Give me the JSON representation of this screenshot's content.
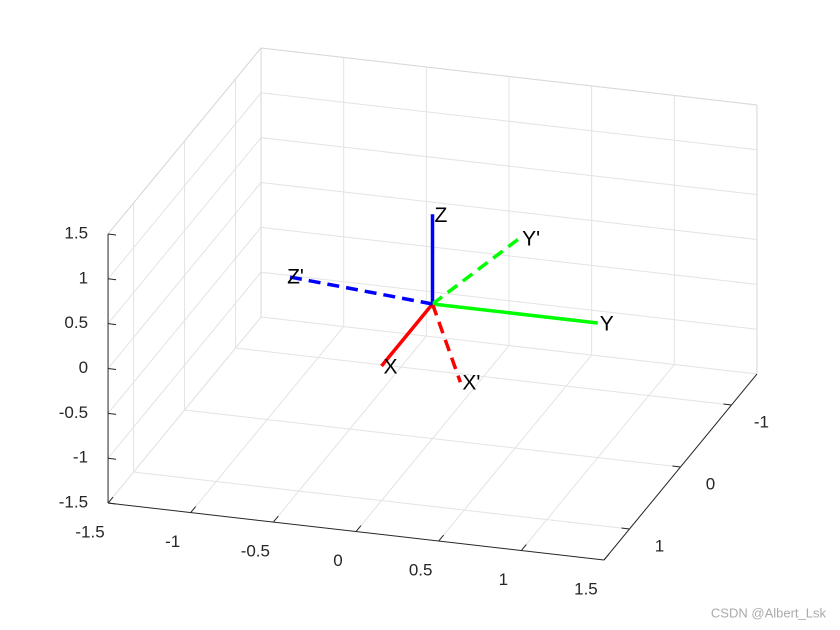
{
  "chart_data": {
    "type": "line3d",
    "xlim": [
      -1.5,
      1.5
    ],
    "ylim": [
      -1.5,
      1.5
    ],
    "zlim": [
      -1.5,
      1.5
    ],
    "xticks": [
      -1,
      0,
      1
    ],
    "yticks": [
      -1.5,
      -1,
      -0.5,
      0,
      0.5,
      1,
      1.5
    ],
    "zticks": [
      -1.5,
      -1,
      -0.5,
      0,
      0.5,
      1,
      1.5
    ],
    "grid": true,
    "series": [
      {
        "name": "X",
        "color": "#ff0000",
        "style": "solid",
        "x": [
          0,
          1
        ],
        "y": [
          0,
          0
        ],
        "z": [
          0,
          0
        ]
      },
      {
        "name": "Y",
        "color": "#00ff00",
        "style": "solid",
        "x": [
          0,
          0
        ],
        "y": [
          0,
          1
        ],
        "z": [
          0,
          0
        ]
      },
      {
        "name": "Z",
        "color": "#0000ff",
        "style": "solid",
        "x": [
          0,
          0
        ],
        "y": [
          0,
          0
        ],
        "z": [
          0,
          1
        ]
      },
      {
        "name": "X'",
        "color": "#ff0000",
        "style": "dashed",
        "x": [
          0,
          0.88
        ],
        "y": [
          0,
          0.44
        ],
        "z": [
          0,
          -0.17
        ]
      },
      {
        "name": "Y'",
        "color": "#00ff00",
        "style": "dashed",
        "x": [
          0,
          0
        ],
        "y": [
          0,
          0.53
        ],
        "z": [
          0,
          0.85
        ]
      },
      {
        "name": "Z'",
        "color": "#0000ff",
        "style": "dashed",
        "x": [
          0,
          0.46
        ],
        "y": [
          0,
          -0.75
        ],
        "z": [
          0,
          0.47
        ]
      }
    ],
    "watermark": "CSDN @Albert_Lsk"
  }
}
